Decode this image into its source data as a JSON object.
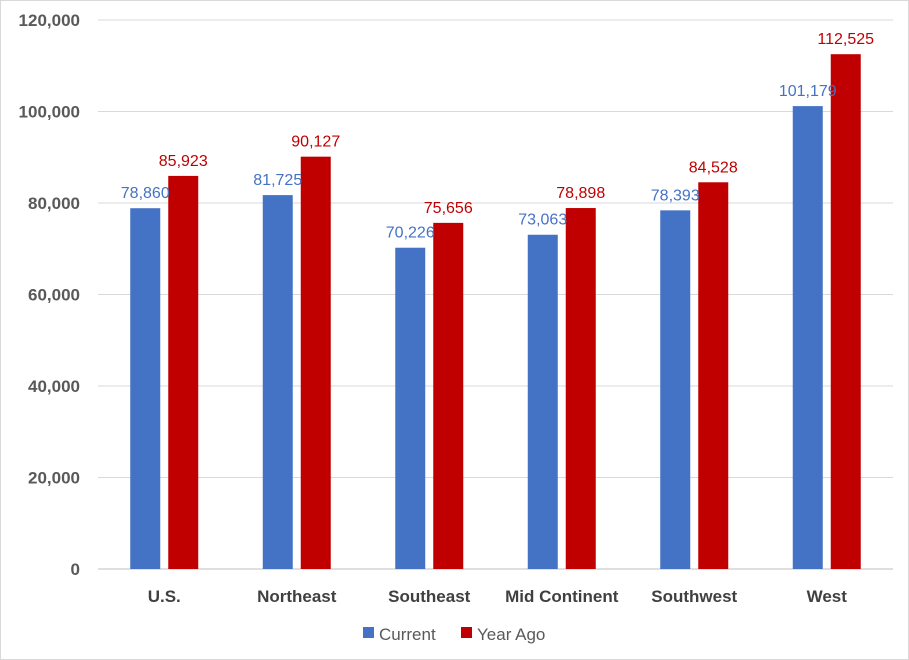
{
  "chart_data": {
    "type": "bar",
    "title": "",
    "xlabel": "",
    "ylabel": "",
    "categories": [
      "U.S.",
      "Northeast",
      "Southeast",
      "Mid Continent",
      "Southwest",
      "West"
    ],
    "series": [
      {
        "name": "Current",
        "color": "#4472c4",
        "label_color": "#4472c4",
        "values": [
          78860,
          81725,
          70226,
          73063,
          78393,
          101179
        ],
        "labels": [
          "78,860",
          "81,725",
          "70,226",
          "73,063",
          "78,393",
          "101,179"
        ]
      },
      {
        "name": "Year Ago",
        "color": "#c00000",
        "label_color": "#c00000",
        "values": [
          85923,
          90127,
          75656,
          78898,
          84528,
          112525
        ],
        "labels": [
          "85,923",
          "90,127",
          "75,656",
          "78,898",
          "84,528",
          "112,525"
        ]
      }
    ],
    "ylim": [
      0,
      120000
    ],
    "yticks": [
      0,
      20000,
      40000,
      60000,
      80000,
      100000,
      120000
    ],
    "ytick_labels": [
      "0",
      "20,000",
      "40,000",
      "60,000",
      "80,000",
      "100,000",
      "120,000"
    ],
    "grid": true,
    "legend_position": "bottom"
  }
}
